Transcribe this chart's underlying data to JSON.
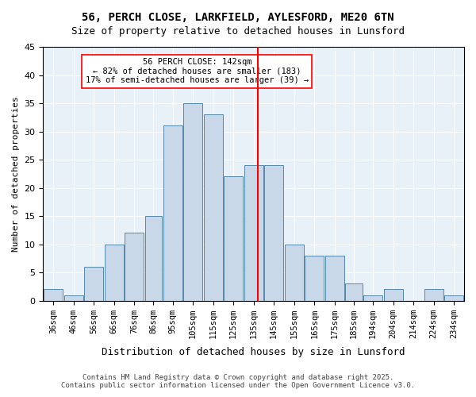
{
  "title": "56, PERCH CLOSE, LARKFIELD, AYLESFORD, ME20 6TN",
  "subtitle": "Size of property relative to detached houses in Lunsford",
  "xlabel": "Distribution of detached houses by size in Lunsford",
  "ylabel": "Number of detached properties",
  "bin_labels": [
    "36sqm",
    "46sqm",
    "56sqm",
    "66sqm",
    "76sqm",
    "86sqm",
    "95sqm",
    "105sqm",
    "115sqm",
    "125sqm",
    "135sqm",
    "145sqm",
    "155sqm",
    "165sqm",
    "175sqm",
    "185sqm",
    "194sqm",
    "204sqm",
    "214sqm",
    "224sqm",
    "234sqm"
  ],
  "bar_heights": [
    2,
    1,
    6,
    10,
    12,
    15,
    31,
    35,
    33,
    22,
    24,
    24,
    10,
    8,
    8,
    3,
    1,
    2,
    0,
    2,
    1
  ],
  "bar_color": "#c8d8e8",
  "bar_edge_color": "#5588aa",
  "vline_x": 142,
  "bin_edges": [
    36,
    46,
    56,
    66,
    76,
    86,
    95,
    105,
    115,
    125,
    135,
    145,
    155,
    165,
    175,
    185,
    194,
    204,
    214,
    224,
    234,
    244
  ],
  "annotation_title": "56 PERCH CLOSE: 142sqm",
  "annotation_line1": "← 82% of detached houses are smaller (183)",
  "annotation_line2": "17% of semi-detached houses are larger (39) →",
  "ylim": [
    0,
    45
  ],
  "yticks": [
    0,
    5,
    10,
    15,
    20,
    25,
    30,
    35,
    40,
    45
  ],
  "bg_color": "#e8f0f8",
  "footer1": "Contains HM Land Registry data © Crown copyright and database right 2025.",
  "footer2": "Contains public sector information licensed under the Open Government Licence v3.0."
}
